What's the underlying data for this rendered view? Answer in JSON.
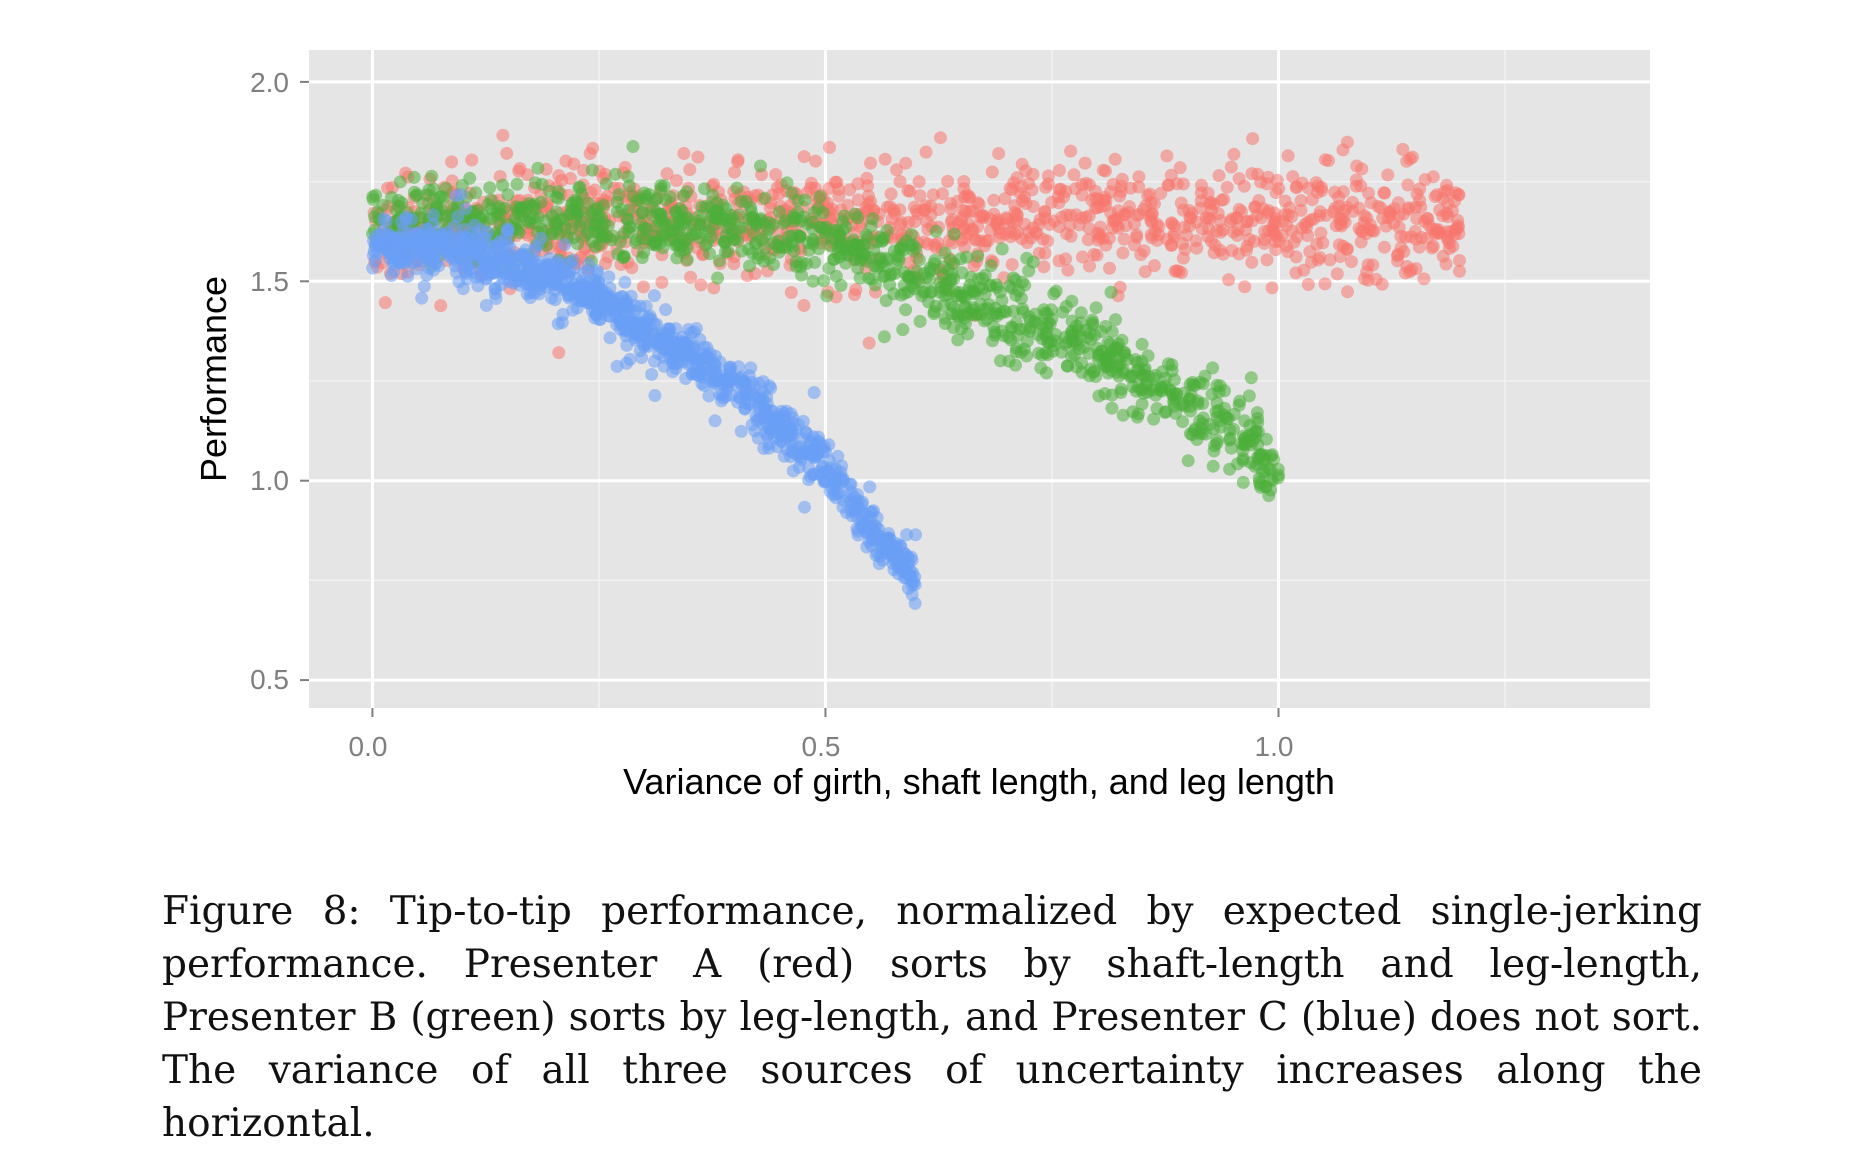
{
  "chart_data": {
    "type": "scatter",
    "xlabel": "Variance of girth, shaft length, and leg length",
    "ylabel": "Performance",
    "xlim": [
      -0.07,
      1.41
    ],
    "ylim": [
      0.43,
      2.08
    ],
    "x_ticks": [
      "0.0",
      "0.5",
      "1.0"
    ],
    "y_ticks": [
      "0.5",
      "1.0",
      "1.5",
      "2.0"
    ],
    "grid": true,
    "legend": "none",
    "series": [
      {
        "color": "#f8766d",
        "x_range": [
          0.0,
          1.2
        ],
        "trend": [
          [
            0.0,
            1.62
          ],
          [
            0.3,
            1.65
          ],
          [
            0.6,
            1.66
          ],
          [
            0.9,
            1.65
          ],
          [
            1.2,
            1.65
          ]
        ],
        "spread": 0.07,
        "n_points": 1200
      },
      {
        "color": "#4daf3a",
        "x_range": [
          0.0,
          1.0
        ],
        "trend": [
          [
            0.0,
            1.65
          ],
          [
            0.3,
            1.66
          ],
          [
            0.5,
            1.61
          ],
          [
            0.6,
            1.52
          ],
          [
            0.7,
            1.43
          ],
          [
            0.8,
            1.32
          ],
          [
            0.9,
            1.19
          ],
          [
            1.0,
            1.03
          ]
        ],
        "spread": 0.05,
        "n_points": 1100
      },
      {
        "color": "#6a9ef5",
        "x_range": [
          0.0,
          0.6
        ],
        "trend": [
          [
            0.0,
            1.59
          ],
          [
            0.1,
            1.58
          ],
          [
            0.2,
            1.51
          ],
          [
            0.3,
            1.38
          ],
          [
            0.4,
            1.24
          ],
          [
            0.5,
            1.03
          ],
          [
            0.6,
            0.74
          ]
        ],
        "spread": 0.035,
        "n_points": 1100
      }
    ]
  },
  "caption": "Figure 8: Tip-to-tip performance, normalized by expected single-jerking performance. Presenter A (red) sorts by shaft-length and leg-length, Presenter B (green) sorts by leg-length, and Presenter C (blue) does not sort. The variance of all three sources of uncertainty increases along the horizontal."
}
